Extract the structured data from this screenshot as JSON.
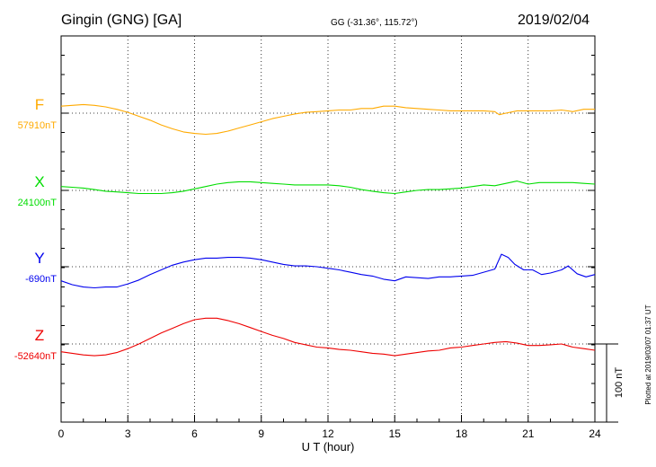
{
  "header": {
    "station": "Gingin (GNG)  [GA]",
    "coords": "GG (-31.36°, 115.72°)",
    "date": "2019/02/04"
  },
  "footer": {
    "xlabel": "U T (hour)",
    "scale_label": "100 nT",
    "plotted": "Plotted at 2019/03/07 01:37 UT"
  },
  "chart_data": {
    "type": "line",
    "title": "Gingin (GNG)  [GA]",
    "subtitle": "GG (-31.36°, 115.72°)",
    "date": "2019/02/04",
    "xlabel": "U T (hour)",
    "ylabel": "",
    "x_ticks": [
      0,
      3,
      6,
      9,
      12,
      15,
      18,
      21,
      24
    ],
    "xlim": [
      0,
      24
    ],
    "grid": true,
    "scale_bar_nT": 100,
    "series": [
      {
        "name": "F",
        "baseline_label": "57910nT",
        "baseline": 57910,
        "color": "#ffaa00",
        "points": [
          [
            0,
            57919
          ],
          [
            0.5,
            57920
          ],
          [
            1,
            57921
          ],
          [
            1.5,
            57920
          ],
          [
            2,
            57918
          ],
          [
            2.5,
            57915
          ],
          [
            3,
            57911
          ],
          [
            3.5,
            57906
          ],
          [
            4,
            57901
          ],
          [
            4.5,
            57895
          ],
          [
            5,
            57890
          ],
          [
            5.5,
            57886
          ],
          [
            6,
            57884
          ],
          [
            6.5,
            57883
          ],
          [
            7,
            57884
          ],
          [
            7.5,
            57887
          ],
          [
            8,
            57891
          ],
          [
            8.5,
            57895
          ],
          [
            9,
            57899
          ],
          [
            9.5,
            57903
          ],
          [
            10,
            57906
          ],
          [
            10.5,
            57909
          ],
          [
            11,
            57911
          ],
          [
            11.5,
            57912
          ],
          [
            12,
            57913
          ],
          [
            12.5,
            57914
          ],
          [
            13,
            57914
          ],
          [
            13.5,
            57916
          ],
          [
            14,
            57916
          ],
          [
            14.5,
            57919
          ],
          [
            15,
            57919
          ],
          [
            15.5,
            57917
          ],
          [
            16,
            57916
          ],
          [
            16.5,
            57915
          ],
          [
            17,
            57914
          ],
          [
            17.5,
            57913
          ],
          [
            18,
            57913
          ],
          [
            18.5,
            57913
          ],
          [
            19,
            57913
          ],
          [
            19.5,
            57912
          ],
          [
            19.7,
            57908
          ],
          [
            20,
            57910
          ],
          [
            20.5,
            57913
          ],
          [
            21,
            57913
          ],
          [
            21.5,
            57913
          ],
          [
            22,
            57913
          ],
          [
            22.5,
            57914
          ],
          [
            23,
            57912
          ],
          [
            23.5,
            57915
          ],
          [
            24,
            57915
          ]
        ]
      },
      {
        "name": "X",
        "baseline_label": "24100nT",
        "baseline": 24100,
        "color": "#00dd00",
        "points": [
          [
            0,
            24105
          ],
          [
            0.5,
            24104
          ],
          [
            1,
            24103
          ],
          [
            1.5,
            24101
          ],
          [
            2,
            24099
          ],
          [
            2.5,
            24098
          ],
          [
            3,
            24097
          ],
          [
            3.5,
            24096
          ],
          [
            4,
            24096
          ],
          [
            4.5,
            24096
          ],
          [
            5,
            24097
          ],
          [
            5.5,
            24099
          ],
          [
            6,
            24102
          ],
          [
            6.5,
            24105
          ],
          [
            7,
            24108
          ],
          [
            7.5,
            24110
          ],
          [
            8,
            24111
          ],
          [
            8.5,
            24111
          ],
          [
            9,
            24110
          ],
          [
            9.5,
            24109
          ],
          [
            10,
            24108
          ],
          [
            10.5,
            24107
          ],
          [
            11,
            24107
          ],
          [
            11.5,
            24107
          ],
          [
            12,
            24107
          ],
          [
            12.5,
            24106
          ],
          [
            13,
            24104
          ],
          [
            13.5,
            24101
          ],
          [
            14,
            24099
          ],
          [
            14.5,
            24097
          ],
          [
            15,
            24096
          ],
          [
            15.5,
            24098
          ],
          [
            16,
            24100
          ],
          [
            16.5,
            24101
          ],
          [
            17,
            24101
          ],
          [
            17.5,
            24102
          ],
          [
            18,
            24103
          ],
          [
            18.5,
            24105
          ],
          [
            19,
            24107
          ],
          [
            19.5,
            24106
          ],
          [
            20,
            24109
          ],
          [
            20.5,
            24112
          ],
          [
            21,
            24108
          ],
          [
            21.5,
            24110
          ],
          [
            22,
            24110
          ],
          [
            22.5,
            24110
          ],
          [
            23,
            24110
          ],
          [
            23.5,
            24109
          ],
          [
            24,
            24108
          ]
        ]
      },
      {
        "name": "Y",
        "baseline_label": "-690nT",
        "baseline": -690,
        "color": "#0000ee",
        "points": [
          [
            0,
            -708
          ],
          [
            0.5,
            -713
          ],
          [
            1,
            -716
          ],
          [
            1.5,
            -717
          ],
          [
            2,
            -716
          ],
          [
            2.5,
            -716
          ],
          [
            3,
            -712
          ],
          [
            3.5,
            -707
          ],
          [
            4,
            -700
          ],
          [
            4.5,
            -694
          ],
          [
            5,
            -688
          ],
          [
            5.5,
            -684
          ],
          [
            6,
            -681
          ],
          [
            6.5,
            -679
          ],
          [
            7,
            -679
          ],
          [
            7.5,
            -678
          ],
          [
            8,
            -678
          ],
          [
            8.5,
            -679
          ],
          [
            9,
            -681
          ],
          [
            9.5,
            -684
          ],
          [
            10,
            -687
          ],
          [
            10.5,
            -689
          ],
          [
            11,
            -689
          ],
          [
            11.5,
            -690
          ],
          [
            12,
            -692
          ],
          [
            12.5,
            -694
          ],
          [
            13,
            -697
          ],
          [
            13.5,
            -700
          ],
          [
            14,
            -702
          ],
          [
            14.5,
            -706
          ],
          [
            15,
            -708
          ],
          [
            15.5,
            -703
          ],
          [
            16,
            -704
          ],
          [
            16.5,
            -705
          ],
          [
            17,
            -703
          ],
          [
            17.5,
            -703
          ],
          [
            18,
            -702
          ],
          [
            18.5,
            -701
          ],
          [
            19,
            -697
          ],
          [
            19.5,
            -693
          ],
          [
            19.8,
            -674
          ],
          [
            20.1,
            -678
          ],
          [
            20.4,
            -687
          ],
          [
            20.8,
            -694
          ],
          [
            21.2,
            -694
          ],
          [
            21.6,
            -700
          ],
          [
            22,
            -698
          ],
          [
            22.5,
            -694
          ],
          [
            22.8,
            -689
          ],
          [
            23.2,
            -699
          ],
          [
            23.6,
            -703
          ],
          [
            24,
            -700
          ]
        ]
      },
      {
        "name": "Z",
        "baseline_label": "-52640nT",
        "baseline": -52640,
        "color": "#ee0000",
        "points": [
          [
            0,
            -52650
          ],
          [
            0.5,
            -52652
          ],
          [
            1,
            -52654
          ],
          [
            1.5,
            -52655
          ],
          [
            2,
            -52654
          ],
          [
            2.5,
            -52651
          ],
          [
            3,
            -52646
          ],
          [
            3.5,
            -52640
          ],
          [
            4,
            -52633
          ],
          [
            4.5,
            -52626
          ],
          [
            5,
            -52620
          ],
          [
            5.5,
            -52614
          ],
          [
            6,
            -52609
          ],
          [
            6.5,
            -52607
          ],
          [
            7,
            -52607
          ],
          [
            7.5,
            -52610
          ],
          [
            8,
            -52614
          ],
          [
            8.5,
            -52619
          ],
          [
            9,
            -52624
          ],
          [
            9.5,
            -52629
          ],
          [
            10,
            -52633
          ],
          [
            10.5,
            -52638
          ],
          [
            11,
            -52641
          ],
          [
            11.5,
            -52644
          ],
          [
            12,
            -52645
          ],
          [
            12.5,
            -52647
          ],
          [
            13,
            -52648
          ],
          [
            13.5,
            -52650
          ],
          [
            14,
            -52652
          ],
          [
            14.5,
            -52653
          ],
          [
            15,
            -52655
          ],
          [
            15.5,
            -52653
          ],
          [
            16,
            -52651
          ],
          [
            16.5,
            -52649
          ],
          [
            17,
            -52648
          ],
          [
            17.5,
            -52645
          ],
          [
            18,
            -52644
          ],
          [
            18.5,
            -52642
          ],
          [
            19,
            -52640
          ],
          [
            19.5,
            -52638
          ],
          [
            20,
            -52637
          ],
          [
            20.5,
            -52639
          ],
          [
            21,
            -52642
          ],
          [
            21.5,
            -52642
          ],
          [
            22,
            -52641
          ],
          [
            22.5,
            -52640
          ],
          [
            23,
            -52644
          ],
          [
            23.5,
            -52646
          ],
          [
            24,
            -52648
          ]
        ]
      }
    ]
  }
}
